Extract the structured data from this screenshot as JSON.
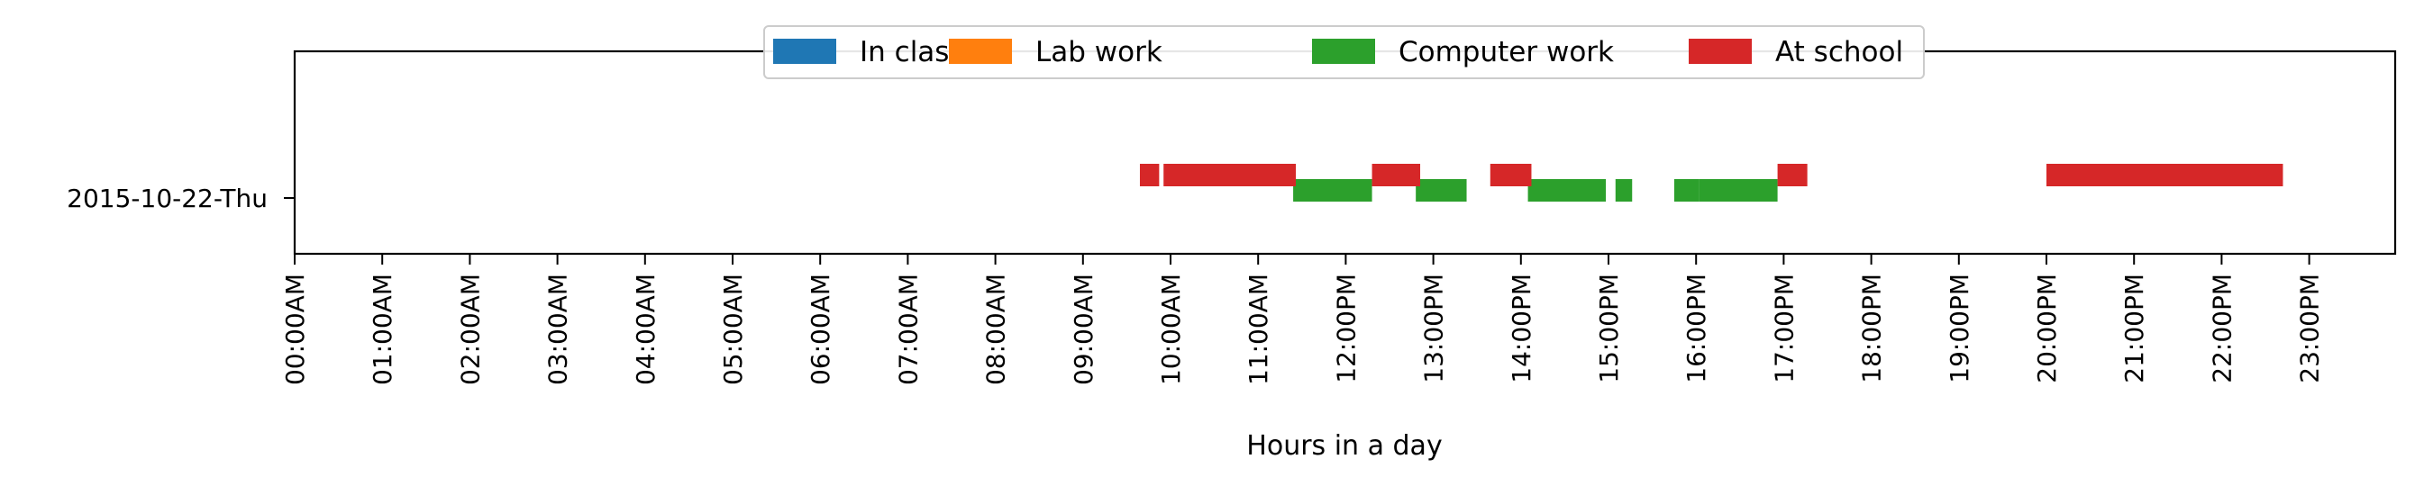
{
  "chart_data": {
    "type": "timeline",
    "title": "",
    "xlabel": "Hours in a day",
    "ylabel": "",
    "xlim": [
      0,
      24
    ],
    "x_ticks": [
      "00:00AM",
      "01:00AM",
      "02:00AM",
      "03:00AM",
      "04:00AM",
      "05:00AM",
      "06:00AM",
      "07:00AM",
      "08:00AM",
      "09:00AM",
      "10:00AM",
      "11:00AM",
      "12:00PM",
      "13:00PM",
      "14:00PM",
      "15:00PM",
      "16:00PM",
      "17:00PM",
      "18:00PM",
      "19:00PM",
      "20:00PM",
      "21:00PM",
      "22:00PM",
      "23:00PM"
    ],
    "categories": [
      "2015-10-22-Thu"
    ],
    "legend_position": "top-center",
    "series": [
      {
        "name": "In class",
        "color": "#1f77b4",
        "intervals": []
      },
      {
        "name": "Lab work",
        "color": "#ff7f0e",
        "intervals": []
      },
      {
        "name": "Computer work",
        "color": "#2ca02c",
        "intervals": [
          [
            11.4,
            12.3
          ],
          [
            12.8,
            13.38
          ],
          [
            14.08,
            14.97
          ],
          [
            15.08,
            15.27
          ],
          [
            15.75,
            16.03
          ],
          [
            16.03,
            16.93
          ]
        ]
      },
      {
        "name": "At school",
        "color": "#d62728",
        "intervals": [
          [
            9.65,
            9.87
          ],
          [
            9.92,
            11.43
          ],
          [
            12.3,
            12.85
          ],
          [
            13.65,
            14.12
          ],
          [
            16.93,
            17.27
          ],
          [
            20.0,
            22.7
          ]
        ]
      }
    ]
  }
}
